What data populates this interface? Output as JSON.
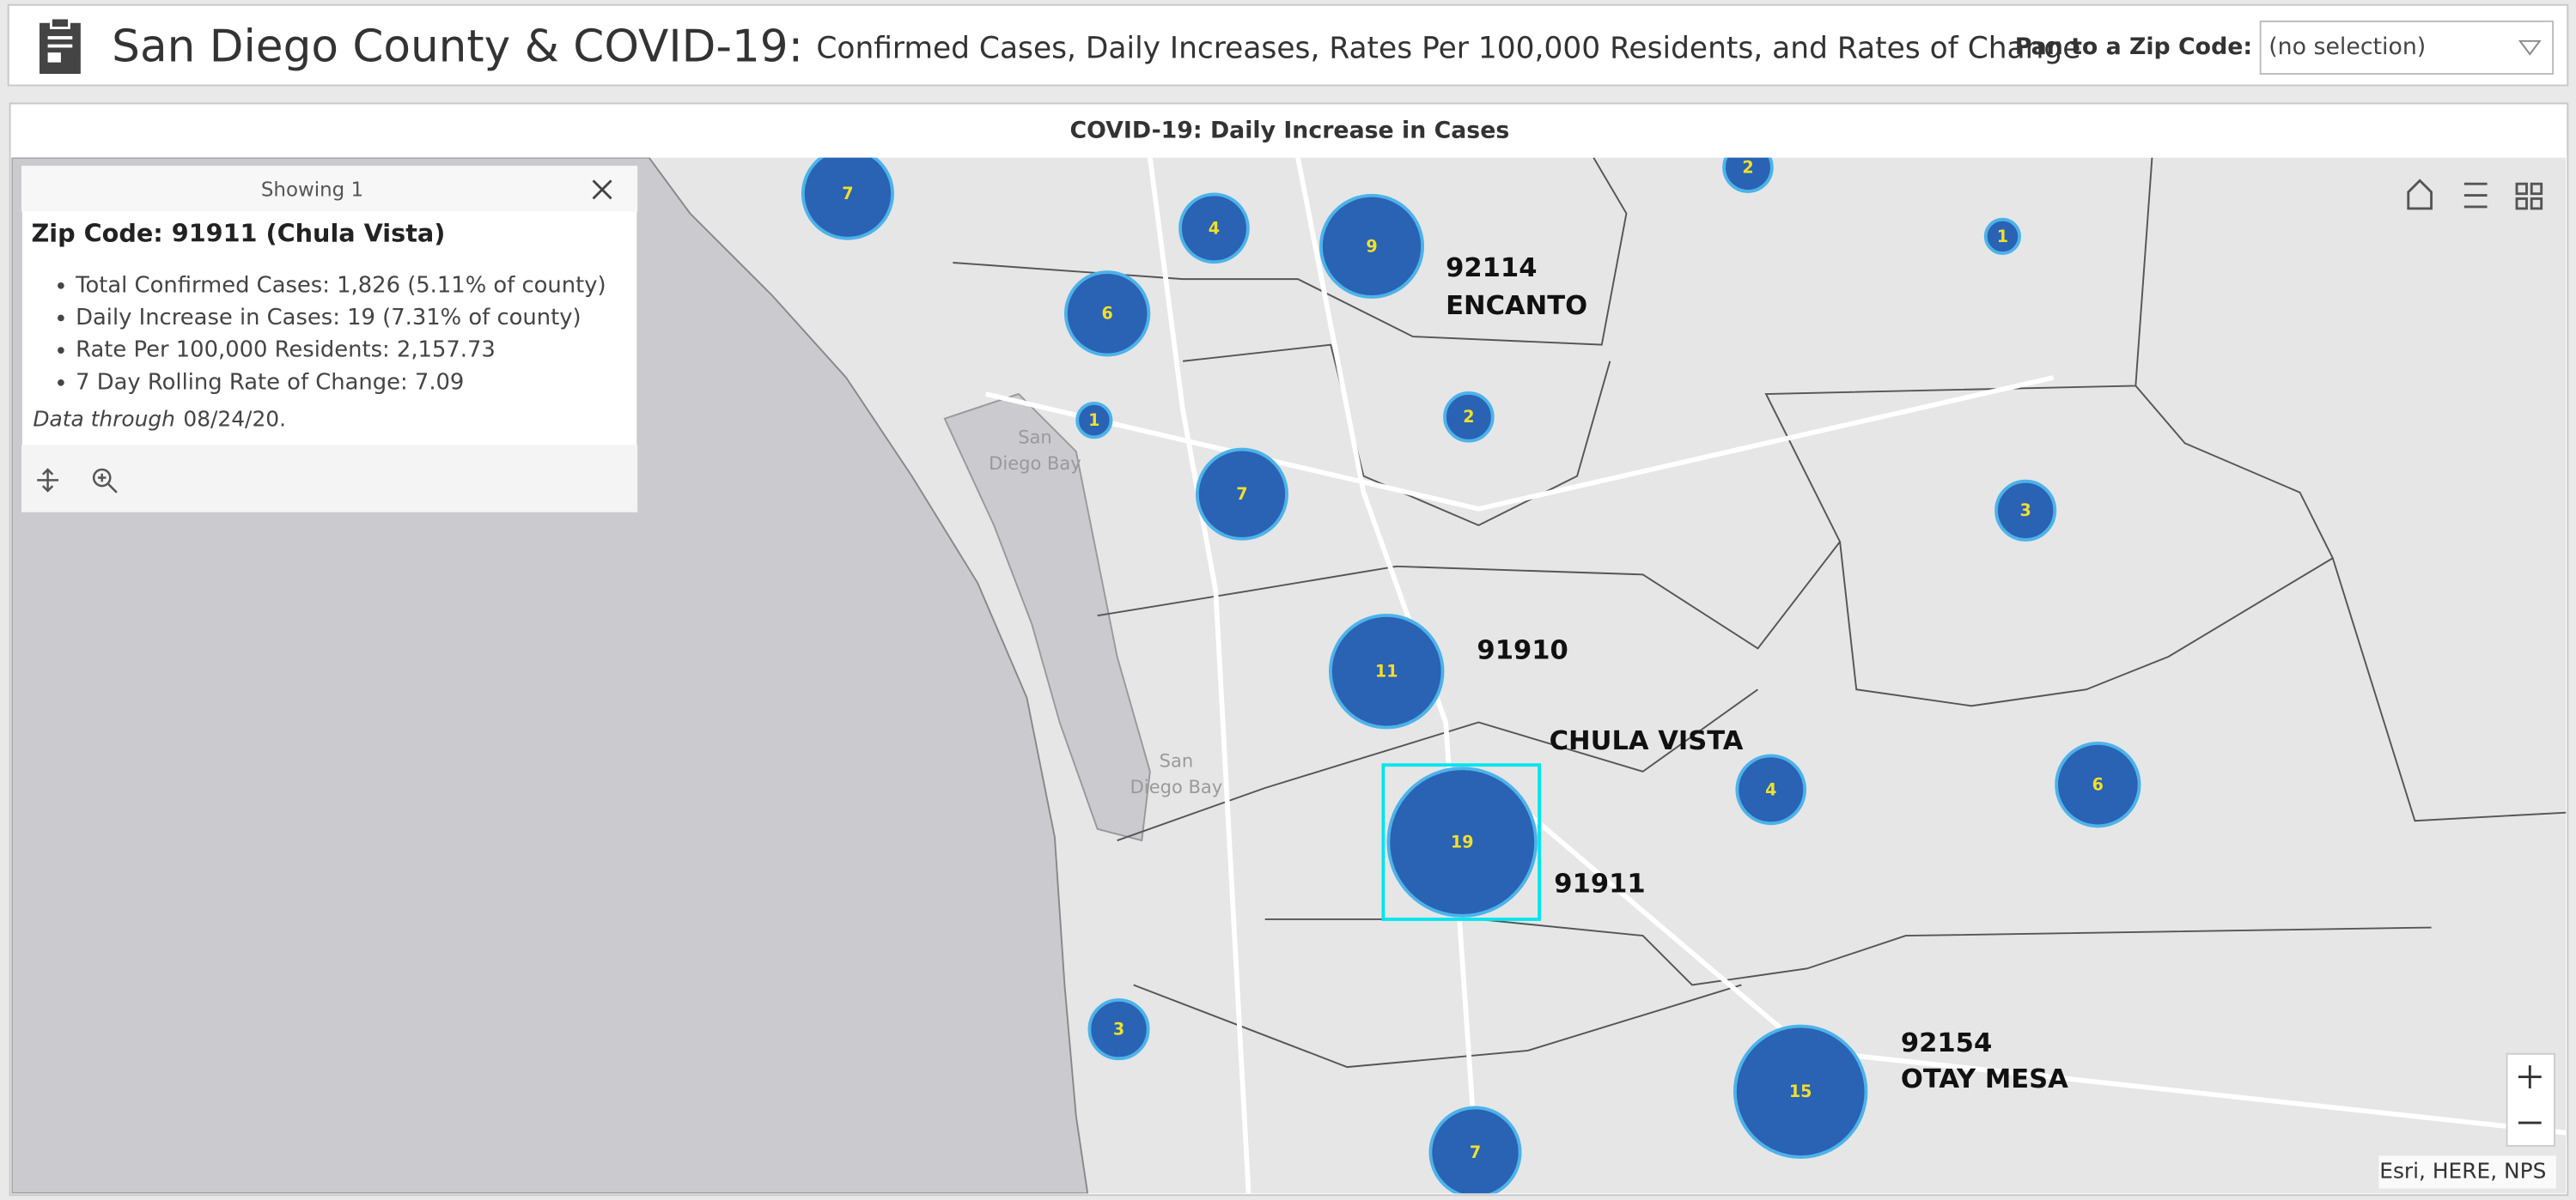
{
  "header": {
    "title": "San Diego County & COVID-19:",
    "subtitle": "Confirmed Cases, Daily Increases, Rates Per 100,000 Residents, and Rates of Change",
    "pan_label": "Pan to a Zip Code:",
    "dropdown_value": "(no selection)"
  },
  "panel": {
    "title": "COVID-19: Daily Increase in Cases"
  },
  "popup": {
    "showing": "Showing 1",
    "heading": "Zip Code: 91911 (Chula Vista)",
    "bullets": [
      "Total Confirmed Cases: 1,826 (5.11% of county)",
      "Daily Increase in Cases: 19 (7.31% of county)",
      "Rate Per 100,000 Residents: 2,157.73",
      "7 Day Rolling Rate of Change: 7.09"
    ],
    "data_through_label": "Data through",
    "data_through_date": "08/24/20."
  },
  "map": {
    "labels": [
      "92114",
      "ENCANTO",
      "91910",
      "CHULA VISTA",
      "91911",
      "92154",
      "OTAY MESA"
    ],
    "water_labels": [
      [
        "San",
        "Diego Bay"
      ],
      [
        "San",
        "Diego Bay"
      ]
    ],
    "bubbles": [
      7,
      4,
      9,
      2,
      1,
      6,
      1,
      2,
      7,
      3,
      11,
      4,
      6,
      19,
      3,
      15,
      7
    ],
    "attribution": "Esri, HERE, NPS"
  }
}
